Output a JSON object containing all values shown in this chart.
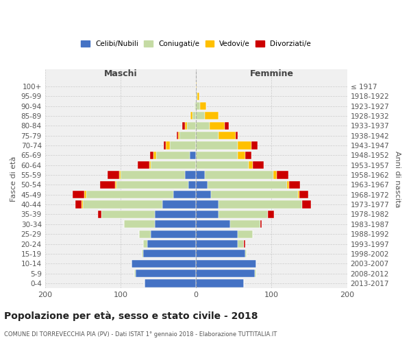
{
  "age_groups": [
    "0-4",
    "5-9",
    "10-14",
    "15-19",
    "20-24",
    "25-29",
    "30-34",
    "35-39",
    "40-44",
    "45-49",
    "50-54",
    "55-59",
    "60-64",
    "65-69",
    "70-74",
    "75-79",
    "80-84",
    "85-89",
    "90-94",
    "95-99",
    "100+"
  ],
  "birth_years": [
    "2013-2017",
    "2008-2012",
    "2003-2007",
    "1998-2002",
    "1993-1997",
    "1988-1992",
    "1983-1987",
    "1978-1982",
    "1973-1977",
    "1968-1972",
    "1963-1967",
    "1958-1962",
    "1953-1957",
    "1948-1952",
    "1943-1947",
    "1938-1942",
    "1933-1937",
    "1928-1932",
    "1923-1927",
    "1918-1922",
    "≤ 1917"
  ],
  "maschi": {
    "celibi": [
      68,
      80,
      85,
      70,
      65,
      60,
      55,
      55,
      45,
      30,
      10,
      15,
      0,
      8,
      0,
      0,
      0,
      0,
      0,
      0,
      0
    ],
    "coniugati": [
      0,
      2,
      0,
      2,
      5,
      15,
      40,
      70,
      105,
      115,
      95,
      85,
      60,
      45,
      35,
      22,
      12,
      5,
      2,
      0,
      0
    ],
    "vedovi": [
      0,
      0,
      0,
      0,
      0,
      0,
      0,
      0,
      2,
      3,
      2,
      2,
      2,
      3,
      5,
      2,
      3,
      2,
      0,
      0,
      0
    ],
    "divorziati": [
      0,
      0,
      0,
      0,
      0,
      0,
      0,
      5,
      8,
      15,
      20,
      15,
      15,
      5,
      3,
      2,
      3,
      0,
      0,
      0,
      0
    ]
  },
  "femmine": {
    "nubili": [
      63,
      78,
      80,
      65,
      55,
      55,
      45,
      30,
      30,
      20,
      15,
      12,
      0,
      0,
      0,
      0,
      0,
      0,
      0,
      0,
      0
    ],
    "coniugate": [
      0,
      2,
      0,
      2,
      8,
      20,
      40,
      65,
      110,
      115,
      105,
      90,
      70,
      55,
      55,
      30,
      18,
      12,
      5,
      2,
      0
    ],
    "vedove": [
      0,
      0,
      0,
      0,
      0,
      0,
      0,
      0,
      0,
      2,
      3,
      5,
      5,
      10,
      18,
      22,
      20,
      18,
      8,
      2,
      1
    ],
    "divorziate": [
      0,
      0,
      0,
      0,
      2,
      0,
      2,
      8,
      12,
      12,
      15,
      15,
      15,
      8,
      8,
      3,
      5,
      0,
      0,
      0,
      0
    ]
  },
  "colors": {
    "celibi": "#4472c4",
    "coniugati": "#c5dba4",
    "vedovi": "#ffc000",
    "divorziati": "#cc0000"
  },
  "xlim": 200,
  "title": "Popolazione per età, sesso e stato civile - 2018",
  "subtitle": "COMUNE DI TORREVECCHIA PIA (PV) - Dati ISTAT 1° gennaio 2018 - Elaborazione TUTTITALIA.IT",
  "ylabel_left": "Fasce di età",
  "ylabel_right": "Anni di nascita",
  "xlabel_maschi": "Maschi",
  "xlabel_femmine": "Femmine",
  "legend_labels": [
    "Celibi/Nubili",
    "Coniugati/e",
    "Vedovi/e",
    "Divorziati/e"
  ],
  "bg_color": "#f0f0f0",
  "grid_color": "#cccccc"
}
